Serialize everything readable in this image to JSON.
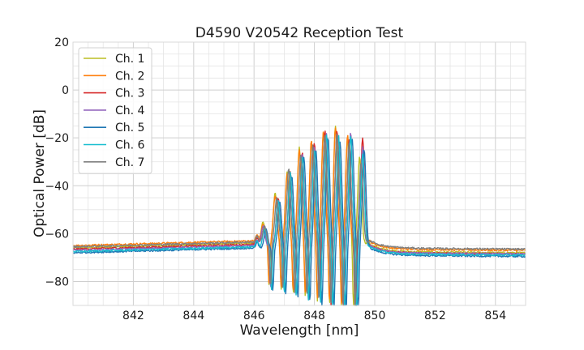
{
  "chart_data": {
    "type": "line",
    "title": "D4590 V20542 Reception Test",
    "xlabel": "Wavelength [nm]",
    "ylabel": "Optical Power [dB]",
    "xlim": [
      840,
      855
    ],
    "ylim": [
      -90,
      20
    ],
    "xticks": [
      842,
      844,
      846,
      848,
      850,
      852,
      854
    ],
    "yticks": [
      20,
      0,
      -20,
      -40,
      -60,
      -80
    ],
    "xtick_labels": [
      "842",
      "844",
      "846",
      "848",
      "850",
      "852",
      "854"
    ],
    "ytick_labels": [
      "20",
      "0",
      "−20",
      "−40",
      "−60",
      "−80"
    ],
    "grid": true,
    "minor_grid": true,
    "legend_position": "top-left",
    "series": [
      {
        "name": "Ch. 1",
        "color": "#bcbd22",
        "baseline_left": -66.0,
        "baseline_right": -67.5,
        "peaks": [
          [
            846.3,
            -55
          ],
          [
            846.7,
            -43
          ],
          [
            847.1,
            -34
          ],
          [
            847.5,
            -24
          ],
          [
            847.9,
            -21
          ],
          [
            848.3,
            -18
          ],
          [
            848.7,
            -15
          ],
          [
            849.1,
            -20
          ],
          [
            849.5,
            -28
          ]
        ]
      },
      {
        "name": "Ch. 2",
        "color": "#ff7f0e",
        "baseline_left": -65.0,
        "baseline_right": -66.5,
        "peaks": [
          [
            846.3,
            -56
          ],
          [
            846.7,
            -44
          ],
          [
            847.1,
            -35
          ],
          [
            847.5,
            -25
          ],
          [
            847.9,
            -21
          ],
          [
            848.3,
            -17
          ],
          [
            848.7,
            -16
          ],
          [
            849.1,
            -19
          ],
          [
            849.6,
            -25
          ]
        ]
      },
      {
        "name": "Ch. 3",
        "color": "#d62728",
        "baseline_left": -66.5,
        "baseline_right": -68.0,
        "peaks": [
          [
            846.3,
            -57
          ],
          [
            846.8,
            -45
          ],
          [
            847.2,
            -34
          ],
          [
            847.6,
            -26
          ],
          [
            848.0,
            -22
          ],
          [
            848.35,
            -17
          ],
          [
            848.75,
            -17
          ],
          [
            849.15,
            -21
          ],
          [
            849.6,
            -20
          ]
        ]
      },
      {
        "name": "Ch. 4",
        "color": "#9467bd",
        "baseline_left": -67.0,
        "baseline_right": -68.0,
        "peaks": [
          [
            846.3,
            -57
          ],
          [
            846.8,
            -46
          ],
          [
            847.2,
            -35
          ],
          [
            847.6,
            -27
          ],
          [
            848.0,
            -24
          ],
          [
            848.4,
            -18
          ],
          [
            848.8,
            -20
          ],
          [
            849.2,
            -18
          ],
          [
            849.6,
            -24
          ]
        ]
      },
      {
        "name": "Ch. 5",
        "color": "#1f77b4",
        "baseline_left": -68.0,
        "baseline_right": -69.0,
        "peaks": [
          [
            846.4,
            -58
          ],
          [
            846.85,
            -47
          ],
          [
            847.25,
            -36
          ],
          [
            847.65,
            -28
          ],
          [
            848.05,
            -25
          ],
          [
            848.45,
            -20
          ],
          [
            848.85,
            -22
          ],
          [
            849.25,
            -20
          ],
          [
            849.65,
            -25
          ]
        ]
      },
      {
        "name": "Ch. 6",
        "color": "#17becf",
        "baseline_left": -67.5,
        "baseline_right": -68.5,
        "peaks": [
          [
            846.35,
            -58
          ],
          [
            846.8,
            -46
          ],
          [
            847.2,
            -34
          ],
          [
            847.6,
            -28
          ],
          [
            848.0,
            -25
          ],
          [
            848.4,
            -19
          ],
          [
            848.8,
            -19
          ],
          [
            849.2,
            -19
          ],
          [
            849.6,
            -27
          ]
        ]
      },
      {
        "name": "Ch. 7",
        "color": "#7f7f7f",
        "baseline_left": -65.5,
        "baseline_right": -66.0,
        "peaks": [
          [
            846.35,
            -57
          ],
          [
            846.75,
            -45
          ],
          [
            847.15,
            -33
          ],
          [
            847.55,
            -27
          ],
          [
            847.95,
            -23
          ],
          [
            848.35,
            -19
          ],
          [
            848.75,
            -18
          ],
          [
            849.15,
            -22
          ],
          [
            849.55,
            -30
          ]
        ]
      }
    ]
  }
}
